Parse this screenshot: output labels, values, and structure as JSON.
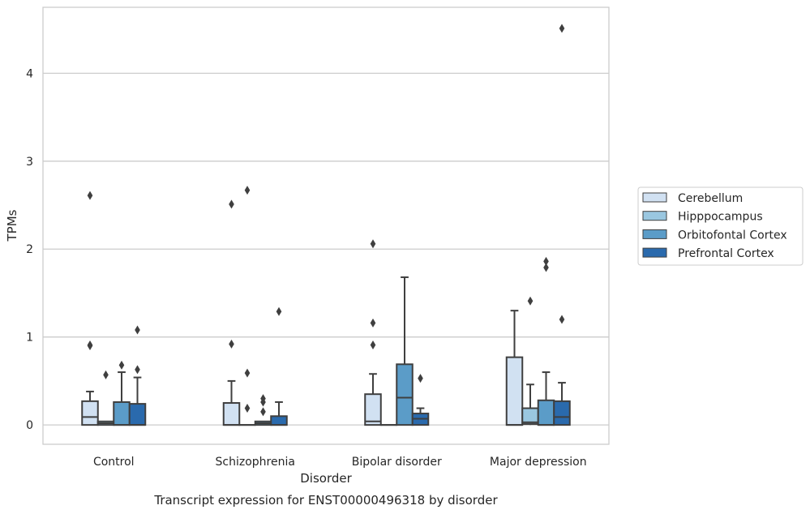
{
  "chart_data": {
    "type": "box",
    "caption": "Transcript expression for ENST00000496318 by disorder",
    "xlabel": "Disorder",
    "ylabel": "TPMs",
    "ylim": [
      -0.22,
      4.75
    ],
    "yticks": [
      0,
      1,
      2,
      3,
      4
    ],
    "grid": "horizontal",
    "legend_position": "right",
    "categories": [
      "Control",
      "Schizophrenia",
      "Bipolar disorder",
      "Major depression"
    ],
    "series": [
      {
        "name": "Cerebellum",
        "color": "#d1e1f2",
        "boxes": [
          {
            "whislo": 0,
            "q1": 0,
            "med": 0.09,
            "q3": 0.27,
            "whishi": 0.38,
            "fliers": [
              2.61,
              0.91,
              0.9
            ]
          },
          {
            "whislo": 0,
            "q1": 0,
            "med": 0,
            "q3": 0.25,
            "whishi": 0.5,
            "fliers": [
              2.51,
              0.92
            ]
          },
          {
            "whislo": 0,
            "q1": 0,
            "med": 0.04,
            "q3": 0.35,
            "whishi": 0.58,
            "fliers": [
              2.06,
              1.16,
              0.91
            ]
          },
          {
            "whislo": 0,
            "q1": 0,
            "med": 0,
            "q3": 0.77,
            "whishi": 1.3,
            "fliers": []
          }
        ]
      },
      {
        "name": "Hipppocampus",
        "color": "#9ac7e0",
        "boxes": [
          {
            "whislo": 0,
            "q1": 0,
            "med": 0.02,
            "q3": 0.04,
            "whishi": 0.04,
            "fliers": [
              0.57
            ]
          },
          {
            "whislo": 0,
            "q1": 0,
            "med": 0,
            "q3": 0,
            "whishi": 0,
            "fliers": [
              2.67,
              0.59,
              0.19
            ]
          },
          {
            "whislo": 0,
            "q1": 0,
            "med": 0,
            "q3": 0,
            "whishi": 0,
            "fliers": []
          },
          {
            "whislo": 0,
            "q1": 0.01,
            "med": 0.03,
            "q3": 0.19,
            "whishi": 0.46,
            "fliers": [
              1.41
            ]
          }
        ]
      },
      {
        "name": "Orbitofontal Cortex",
        "color": "#5b9cc8",
        "boxes": [
          {
            "whislo": 0,
            "q1": 0,
            "med": 0,
            "q3": 0.26,
            "whishi": 0.6,
            "fliers": [
              0.68
            ]
          },
          {
            "whislo": 0,
            "q1": 0,
            "med": 0.02,
            "q3": 0.04,
            "whishi": 0.04,
            "fliers": [
              0.3,
              0.26,
              0.15
            ]
          },
          {
            "whislo": 0,
            "q1": 0,
            "med": 0.31,
            "q3": 0.69,
            "whishi": 1.68,
            "fliers": []
          },
          {
            "whislo": 0,
            "q1": 0,
            "med": 0,
            "q3": 0.28,
            "whishi": 0.6,
            "fliers": [
              1.86,
              1.79
            ]
          }
        ]
      },
      {
        "name": "Prefrontal Cortex",
        "color": "#2a6aad",
        "boxes": [
          {
            "whislo": 0,
            "q1": 0,
            "med": 0,
            "q3": 0.24,
            "whishi": 0.54,
            "fliers": [
              1.08,
              0.63
            ]
          },
          {
            "whislo": 0,
            "q1": 0,
            "med": 0,
            "q3": 0.1,
            "whishi": 0.26,
            "fliers": [
              1.29
            ]
          },
          {
            "whislo": 0,
            "q1": 0,
            "med": 0.07,
            "q3": 0.13,
            "whishi": 0.19,
            "fliers": [
              0.53
            ]
          },
          {
            "whislo": 0,
            "q1": 0,
            "med": 0.09,
            "q3": 0.27,
            "whishi": 0.48,
            "fliers": [
              4.51,
              1.2
            ]
          }
        ]
      }
    ]
  }
}
